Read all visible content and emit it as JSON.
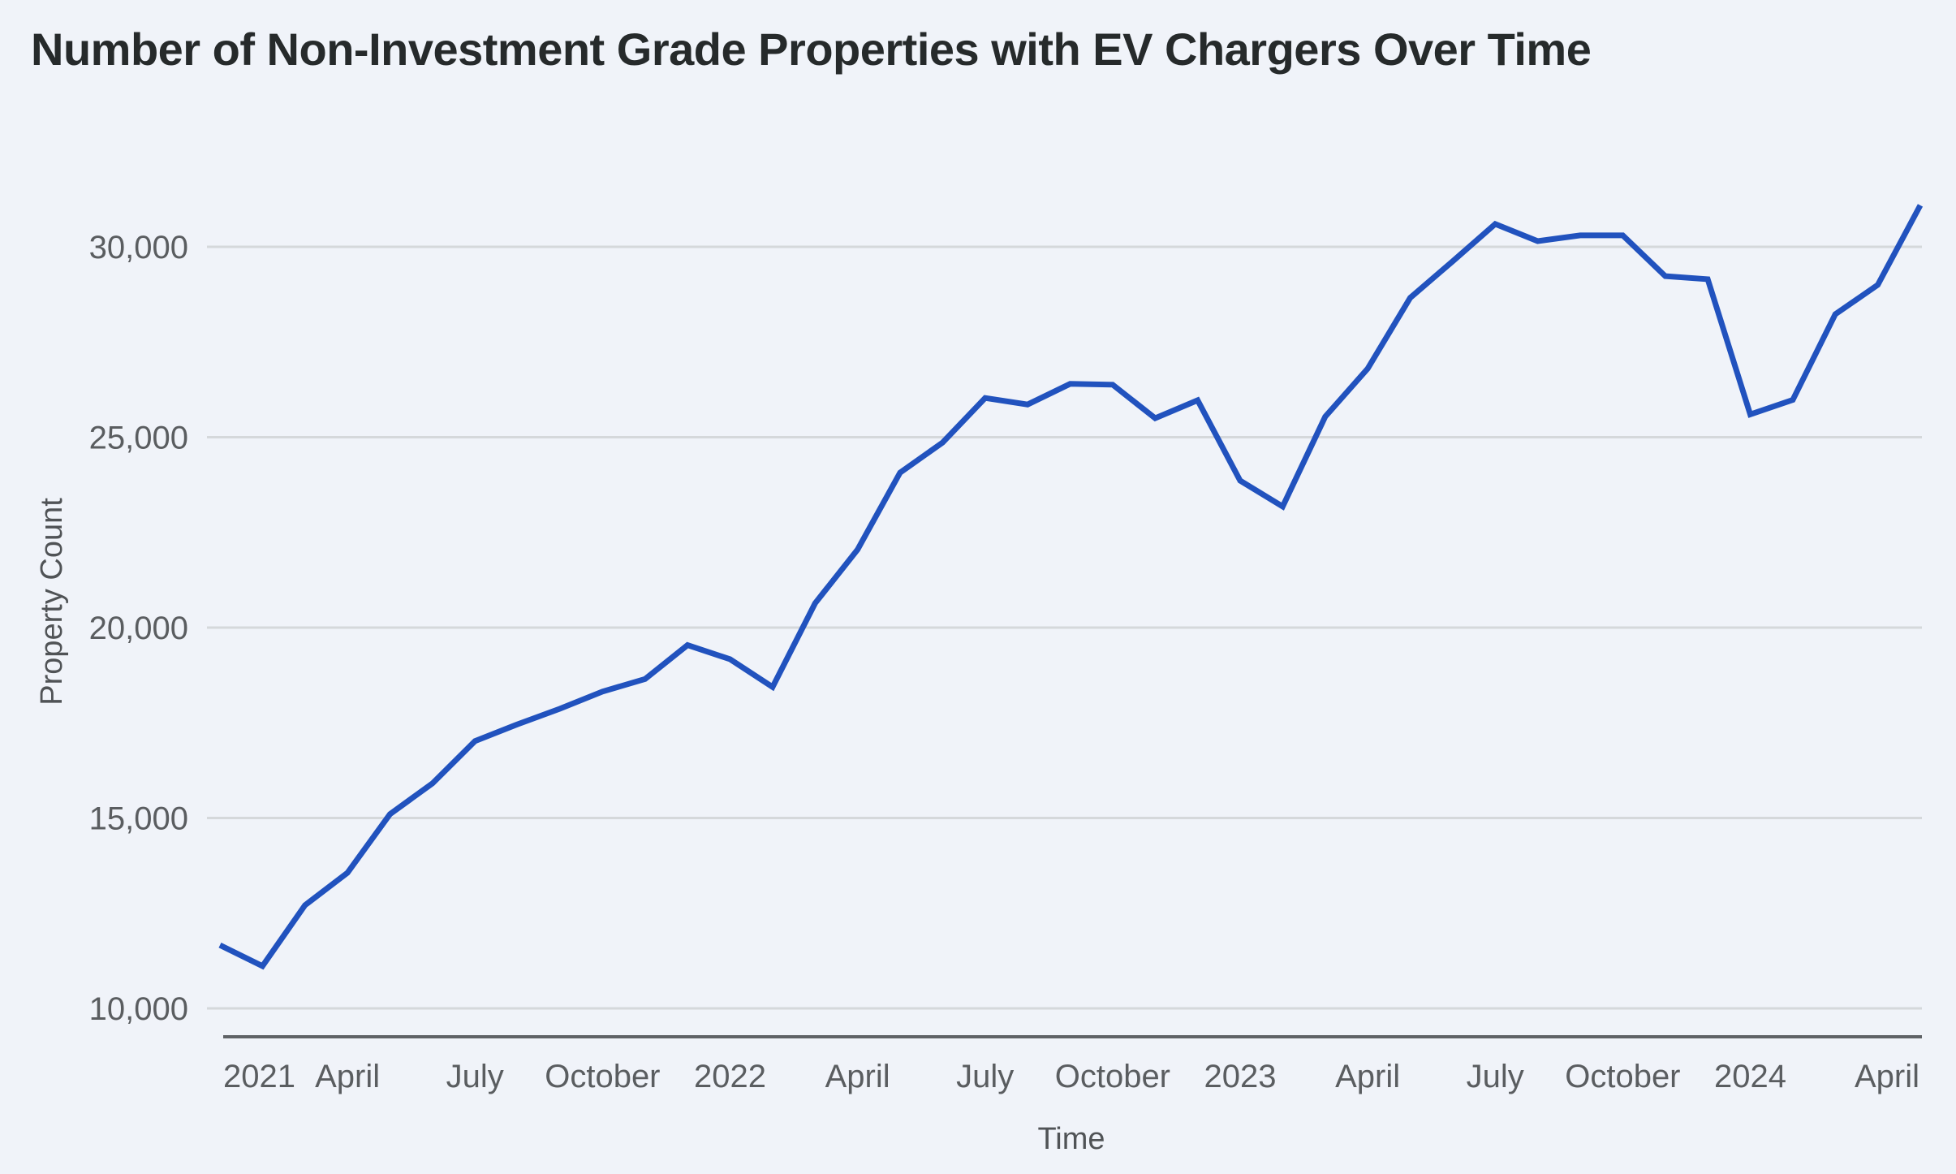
{
  "chart_data": {
    "type": "line",
    "title": "Number of Non-Investment Grade Properties with EV Chargers Over Time",
    "xlabel": "Time",
    "ylabel": "Property Count",
    "ylim": [
      10000,
      31500
    ],
    "yticks": [
      10000,
      15000,
      20000,
      25000,
      30000
    ],
    "ytick_labels": [
      "10,000",
      "15,000",
      "20,000",
      "25,000",
      "30,000"
    ],
    "grid": true,
    "legend": "none",
    "x": [
      "2021-01",
      "2021-02",
      "2021-03",
      "2021-04",
      "2021-05",
      "2021-06",
      "2021-07",
      "2021-08",
      "2021-09",
      "2021-10",
      "2021-11",
      "2021-12",
      "2022-01",
      "2022-02",
      "2022-03",
      "2022-04",
      "2022-05",
      "2022-06",
      "2022-07",
      "2022-08",
      "2022-09",
      "2022-10",
      "2022-11",
      "2022-12",
      "2023-01",
      "2023-02",
      "2023-03",
      "2023-04",
      "2023-05",
      "2023-06",
      "2023-07",
      "2023-08",
      "2023-09",
      "2023-10",
      "2023-11",
      "2023-12",
      "2024-01",
      "2024-02",
      "2024-03",
      "2024-04",
      "2024-05"
    ],
    "xtick_labels": [
      {
        "index": 0,
        "label": "2021"
      },
      {
        "index": 3,
        "label": "April"
      },
      {
        "index": 6,
        "label": "July"
      },
      {
        "index": 9,
        "label": "October"
      },
      {
        "index": 12,
        "label": "2022"
      },
      {
        "index": 15,
        "label": "April"
      },
      {
        "index": 18,
        "label": "July"
      },
      {
        "index": 21,
        "label": "October"
      },
      {
        "index": 24,
        "label": "2023"
      },
      {
        "index": 27,
        "label": "April"
      },
      {
        "index": 30,
        "label": "July"
      },
      {
        "index": 33,
        "label": "October"
      },
      {
        "index": 36,
        "label": "2024"
      },
      {
        "index": 39,
        "label": "April"
      }
    ],
    "series": [
      {
        "name": "Property Count",
        "color": "#2152be",
        "values": [
          11660,
          11110,
          12710,
          13560,
          15100,
          15910,
          17020,
          17460,
          17870,
          18320,
          18650,
          19540,
          19170,
          18440,
          20640,
          22050,
          24070,
          24860,
          26030,
          25860,
          26400,
          26380,
          25500,
          25970,
          23860,
          23180,
          25540,
          26800,
          28660,
          29620,
          30600,
          30150,
          30300,
          30300,
          29230,
          29150,
          25600,
          25980,
          28230,
          29000,
          31090
        ]
      }
    ]
  },
  "colors": {
    "background": "#f0f3f9",
    "grid": "#d5d8db",
    "axis": "#5f6266",
    "line": "#2152be"
  }
}
